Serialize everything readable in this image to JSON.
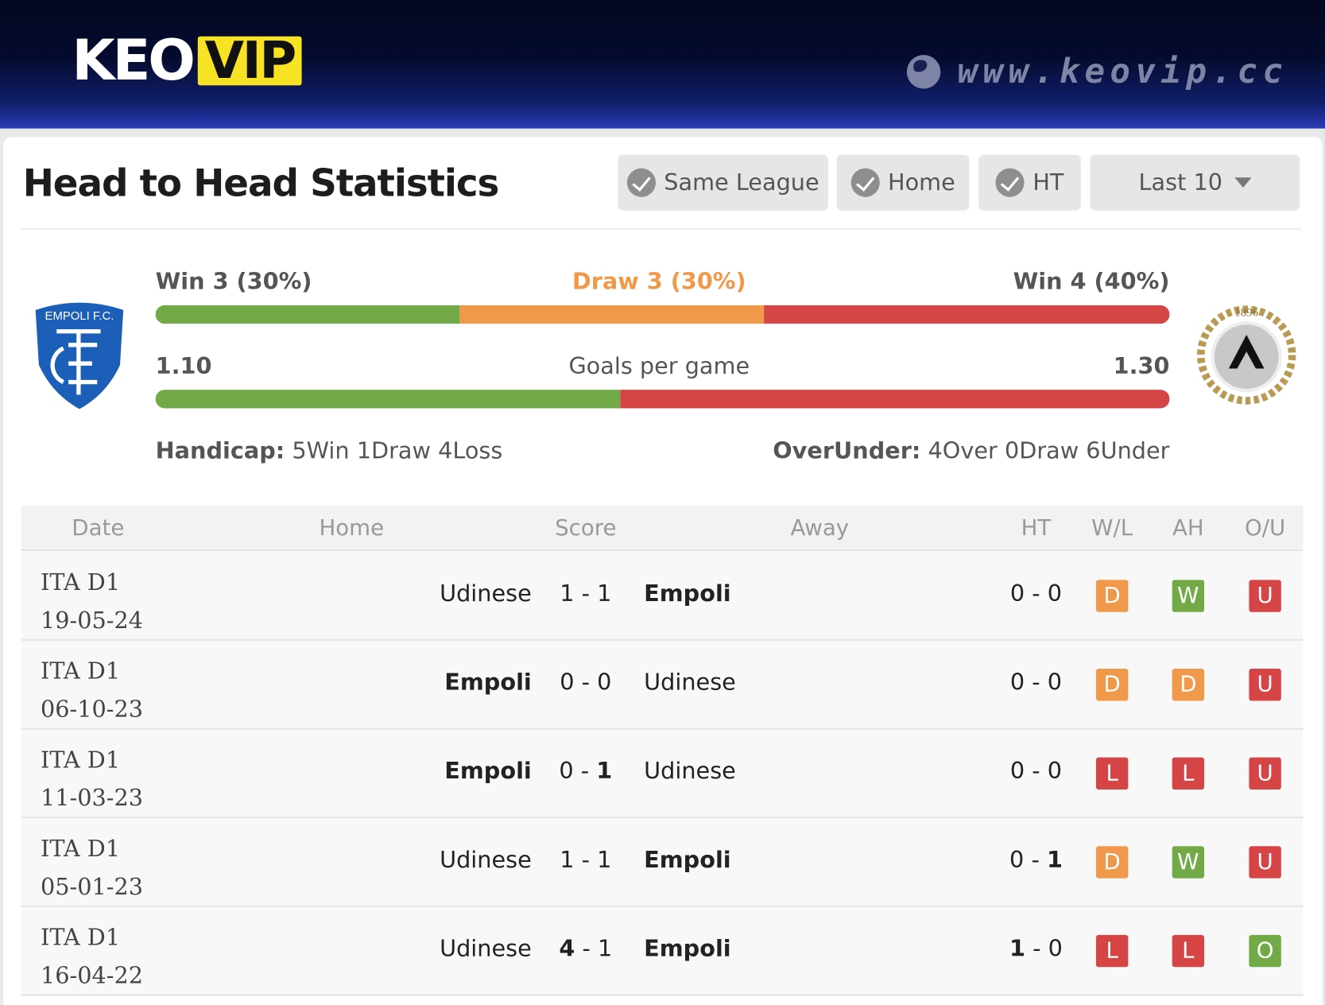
{
  "header": {
    "logo_text": "KEO",
    "logo_badge": "VIP",
    "site_url": "www.keovip.cc",
    "globe_icon": "globe-icon"
  },
  "title": "Head to Head Statistics",
  "filters": {
    "same_league": "Same League",
    "home": "Home",
    "ht": "HT",
    "last": "Last 10"
  },
  "teams": {
    "home": "Empoli",
    "away": "Udinese",
    "home_logo_text": "EMPOLI F.C.",
    "away_logo_text": "1896"
  },
  "summary": {
    "home_win": "Win 3 (30%)",
    "draw": "Draw 3 (30%)",
    "away_win": "Win 4 (40%)",
    "home_win_pct": 30,
    "draw_pct": 30,
    "away_win_pct": 40,
    "home_goals": "1.10",
    "goals_label": "Goals per game",
    "away_goals": "1.30",
    "home_goals_value": 1.1,
    "away_goals_value": 1.3,
    "handicap_label": "Handicap:",
    "handicap_value": "5Win 1Draw 4Loss",
    "overunder_label": "OverUnder:",
    "overunder_value": "4Over 0Draw 6Under"
  },
  "colors": {
    "green": "#72aa47",
    "orange": "#f0994a",
    "red": "#d64545"
  },
  "table": {
    "headers": [
      "Date",
      "Home",
      "Score",
      "Away",
      "HT",
      "W/L",
      "AH",
      "O/U"
    ],
    "rows": [
      {
        "league": "ITA D1",
        "date": "19-05-24",
        "home": "Udinese",
        "home_bold": false,
        "sh": "1",
        "sa": "1",
        "sh_b": false,
        "sa_b": false,
        "away": "Empoli",
        "away_bold": true,
        "hh": "0",
        "ha": "0",
        "hh_b": false,
        "ha_b": false,
        "wl": "D",
        "ah": "W",
        "ou": "U"
      },
      {
        "league": "ITA D1",
        "date": "06-10-23",
        "home": "Empoli",
        "home_bold": true,
        "sh": "0",
        "sa": "0",
        "sh_b": false,
        "sa_b": false,
        "away": "Udinese",
        "away_bold": false,
        "hh": "0",
        "ha": "0",
        "hh_b": false,
        "ha_b": false,
        "wl": "D",
        "ah": "D",
        "ou": "U"
      },
      {
        "league": "ITA D1",
        "date": "11-03-23",
        "home": "Empoli",
        "home_bold": true,
        "sh": "0",
        "sa": "1",
        "sh_b": false,
        "sa_b": true,
        "away": "Udinese",
        "away_bold": false,
        "hh": "0",
        "ha": "0",
        "hh_b": false,
        "ha_b": false,
        "wl": "L",
        "ah": "L",
        "ou": "U"
      },
      {
        "league": "ITA D1",
        "date": "05-01-23",
        "home": "Udinese",
        "home_bold": false,
        "sh": "1",
        "sa": "1",
        "sh_b": false,
        "sa_b": false,
        "away": "Empoli",
        "away_bold": true,
        "hh": "0",
        "ha": "1",
        "hh_b": false,
        "ha_b": true,
        "wl": "D",
        "ah": "W",
        "ou": "U"
      },
      {
        "league": "ITA D1",
        "date": "16-04-22",
        "home": "Udinese",
        "home_bold": false,
        "sh": "4",
        "sa": "1",
        "sh_b": true,
        "sa_b": false,
        "away": "Empoli",
        "away_bold": true,
        "hh": "1",
        "ha": "0",
        "hh_b": true,
        "ha_b": false,
        "wl": "L",
        "ah": "L",
        "ou": "O"
      }
    ]
  }
}
